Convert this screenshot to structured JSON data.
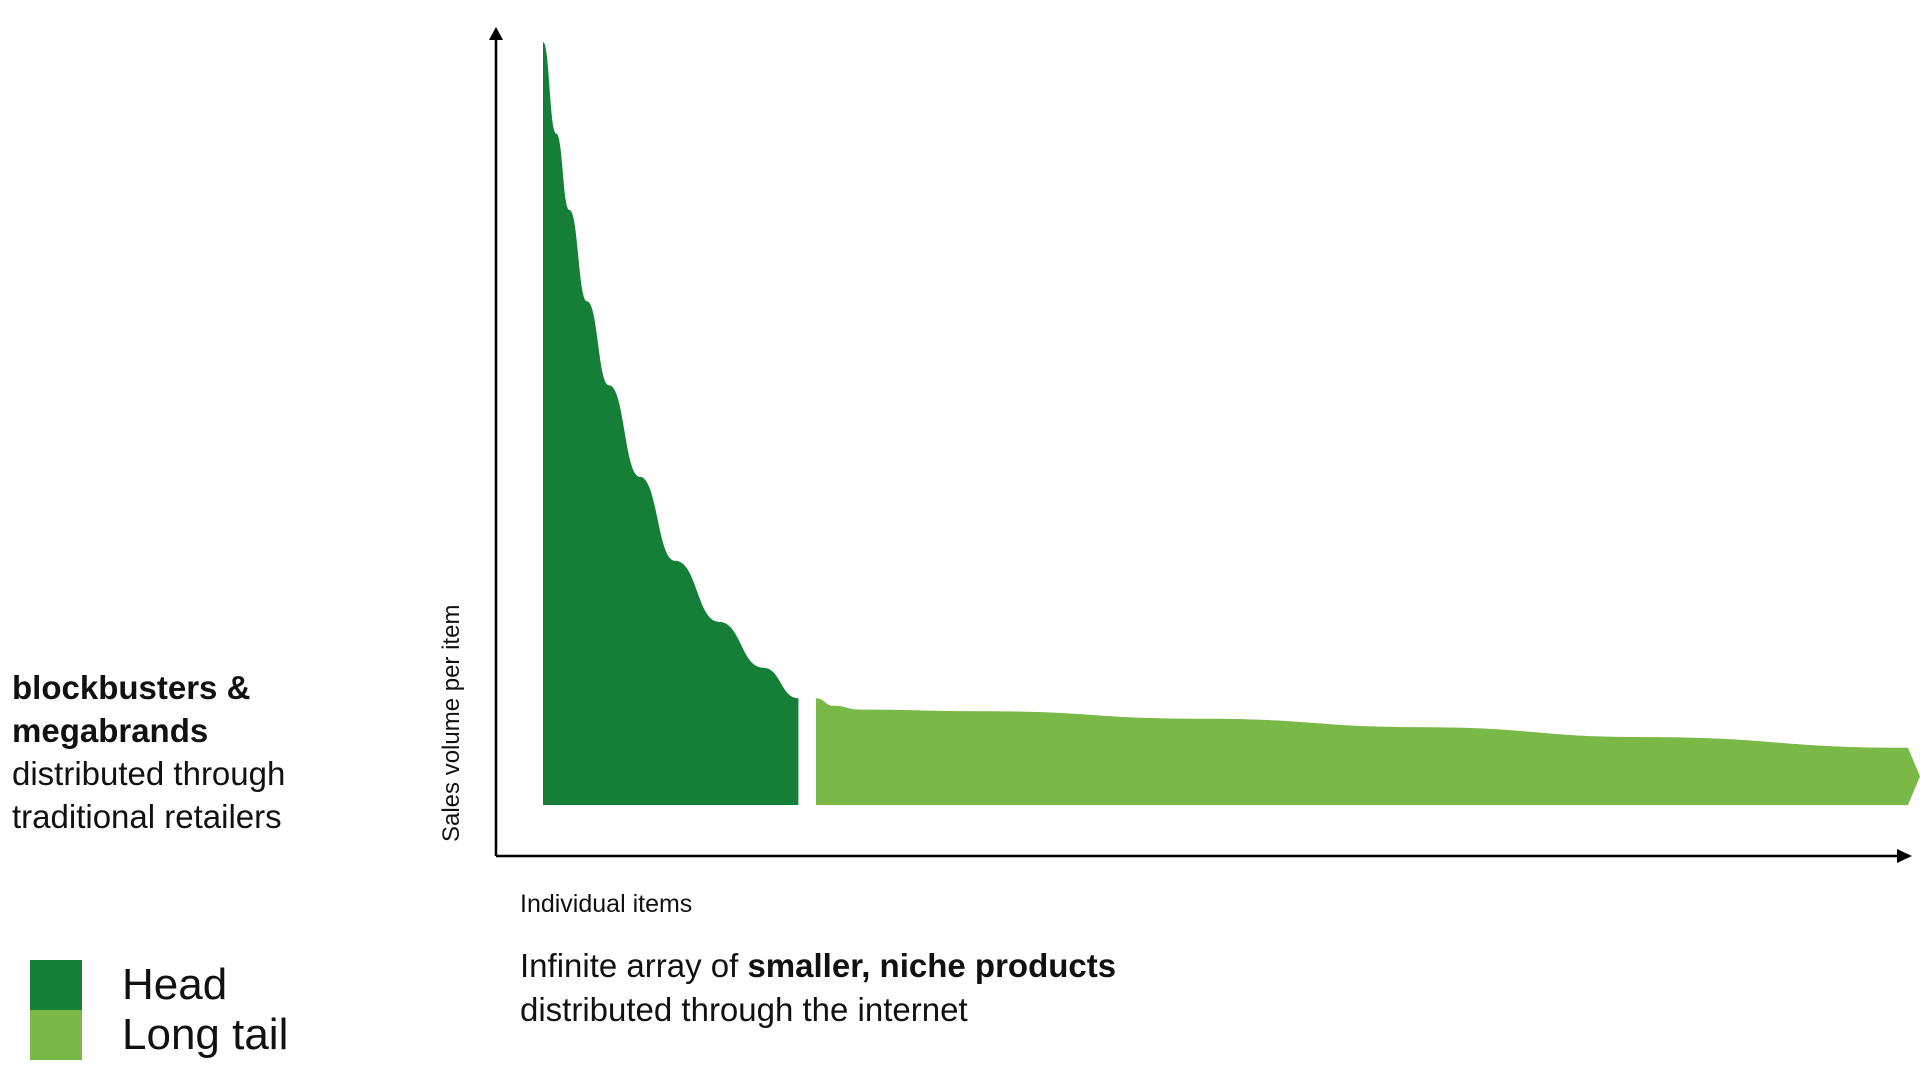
{
  "colors": {
    "head": "#167F37",
    "long_tail": "#7AB848",
    "axis": "#000000"
  },
  "chart_data": {
    "type": "area",
    "xlabel": "Individual items",
    "ylabel": "Sales volume per item",
    "axis_ticks": false,
    "grid": false,
    "legend_position": "bottom-left",
    "series": [
      {
        "name": "Head",
        "color": "#167F37",
        "x": [
          0,
          3,
          6,
          10,
          15,
          22,
          30,
          40,
          50,
          58
        ],
        "y": [
          100,
          88,
          78,
          66,
          55,
          43,
          32,
          24,
          18,
          14
        ]
      },
      {
        "name": "Long tail",
        "color": "#7AB848",
        "x": [
          62,
          66,
          72,
          100,
          150,
          200,
          250,
          310
        ],
        "y": [
          14,
          13,
          12.5,
          12.3,
          11.3,
          10.2,
          8.9,
          7.5
        ]
      }
    ],
    "xlim": [
      0,
      310
    ],
    "ylim": [
      0,
      100
    ]
  },
  "annotations": {
    "left": {
      "strong_line1": "blockbusters &",
      "strong_line2": "megabrands",
      "line3": "distributed through",
      "line4": "traditional retailers"
    },
    "bottom": {
      "prefix": "Infinite array of ",
      "strong": "smaller, niche products",
      "line2": "distributed through the internet"
    }
  },
  "legend": [
    {
      "label": "Head",
      "color": "#167F37"
    },
    {
      "label": "Long tail",
      "color": "#7AB848"
    }
  ]
}
